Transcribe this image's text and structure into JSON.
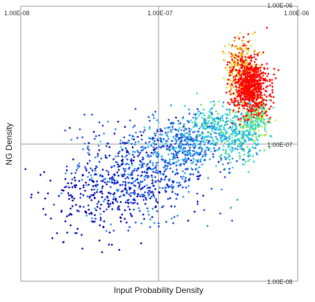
{
  "chart_data": {
    "type": "scatter",
    "title": "",
    "xlabel": "Input Probability Density",
    "ylabel": "NG Density",
    "x_scale": "log",
    "y_scale": "log",
    "xlim": [
      1e-08,
      1e-06
    ],
    "ylim": [
      1e-08,
      1e-06
    ],
    "x_ticks": [
      {
        "value": 1e-08,
        "label": "1.00E-08"
      },
      {
        "value": 1e-07,
        "label": "1.00E-07"
      },
      {
        "value": 1e-06,
        "label": "1.00E-06"
      }
    ],
    "y_ticks": [
      {
        "value": 1e-06,
        "label": "1.00E-06"
      },
      {
        "value": 1e-07,
        "label": "1.00E-07"
      },
      {
        "value": 1e-08,
        "label": "1.00E-08"
      }
    ],
    "grid": true,
    "legend": "none",
    "marker": "+",
    "colormap": [
      "#0000aa",
      "#1a3fe0",
      "#1f8fe8",
      "#22d3e0",
      "#5ce07a",
      "#d6e23a",
      "#f5a000",
      "#ff0000"
    ],
    "clusters": [
      {
        "x": 7e-08,
        "y": 6e-08,
        "sx": 0.25,
        "sy": 0.17,
        "n": 650,
        "color_index": 1,
        "color_jitter": 1
      },
      {
        "x": 3.2e-08,
        "y": 3.8e-08,
        "sx": 0.18,
        "sy": 0.14,
        "n": 150,
        "color_index": 0,
        "color_jitter": 0
      },
      {
        "x": 1.5e-07,
        "y": 1e-07,
        "sx": 0.16,
        "sy": 0.1,
        "n": 420,
        "color_index": 2,
        "color_jitter": 1
      },
      {
        "x": 2.4e-07,
        "y": 1.4e-07,
        "sx": 0.08,
        "sy": 0.07,
        "n": 160,
        "color_index": 3,
        "color_jitter": 1
      },
      {
        "x": 3.9e-07,
        "y": 1.15e-07,
        "sx": 0.08,
        "sy": 0.1,
        "n": 260,
        "color_index": 3,
        "color_jitter": 1
      },
      {
        "x": 5e-07,
        "y": 1.6e-07,
        "sx": 0.05,
        "sy": 0.08,
        "n": 230,
        "color_index": 4,
        "color_jitter": 1
      },
      {
        "x": 4e-07,
        "y": 3.3e-07,
        "sx": 0.06,
        "sy": 0.12,
        "n": 340,
        "color_index": 6,
        "color_jitter": 1
      },
      {
        "x": 4.6e-07,
        "y": 2.6e-07,
        "sx": 0.06,
        "sy": 0.1,
        "n": 650,
        "color_index": 7,
        "color_jitter": 0
      }
    ]
  }
}
